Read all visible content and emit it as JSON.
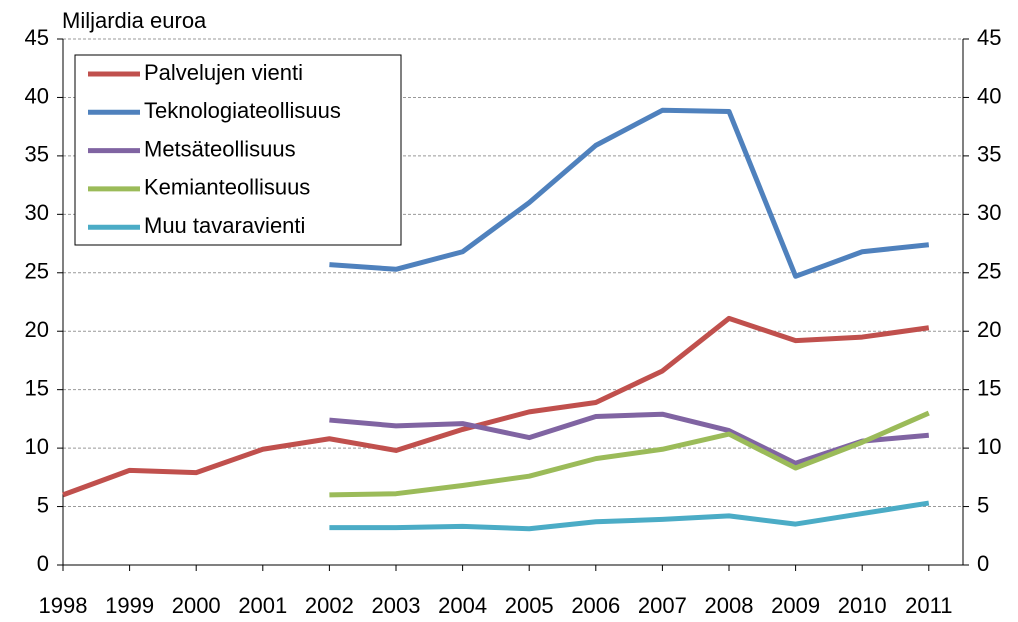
{
  "chart_data": {
    "type": "line",
    "y_label": "Miljardia euroa",
    "categories": [
      "1998",
      "1999",
      "2000",
      "2001",
      "2002",
      "2003",
      "2004",
      "2005",
      "2006",
      "2007",
      "2008",
      "2009",
      "2010",
      "2011"
    ],
    "series": [
      {
        "name": "Palvelujen vienti",
        "color": "#c0504d",
        "values": [
          6.0,
          8.1,
          7.9,
          9.9,
          10.8,
          9.8,
          11.6,
          13.1,
          13.9,
          16.6,
          21.1,
          19.2,
          19.5,
          20.3
        ]
      },
      {
        "name": "Teknologiateollisuus",
        "color": "#4f81bd",
        "values": [
          null,
          null,
          null,
          null,
          25.7,
          25.3,
          26.8,
          31.0,
          35.9,
          38.9,
          38.8,
          24.7,
          26.8,
          27.4
        ]
      },
      {
        "name": "Metsäteollisuus",
        "color": "#8064a2",
        "values": [
          null,
          null,
          null,
          null,
          12.4,
          11.9,
          12.1,
          10.9,
          12.7,
          12.9,
          11.5,
          8.7,
          10.6,
          11.1
        ]
      },
      {
        "name": "Kemianteollisuus",
        "color": "#9bbb59",
        "values": [
          null,
          null,
          null,
          null,
          6.0,
          6.1,
          6.8,
          7.6,
          9.1,
          9.9,
          11.2,
          8.3,
          10.5,
          13.0
        ]
      },
      {
        "name": "Muu tavaravienti",
        "color": "#4bacc6",
        "values": [
          null,
          null,
          null,
          null,
          3.2,
          3.2,
          3.3,
          3.1,
          3.7,
          3.9,
          4.2,
          3.5,
          4.4,
          5.3
        ]
      }
    ],
    "ylim": [
      0,
      45
    ],
    "yticks": [
      0,
      5,
      10,
      15,
      20,
      25,
      30,
      35,
      40,
      45
    ],
    "grid": true,
    "legend": "upper left"
  }
}
